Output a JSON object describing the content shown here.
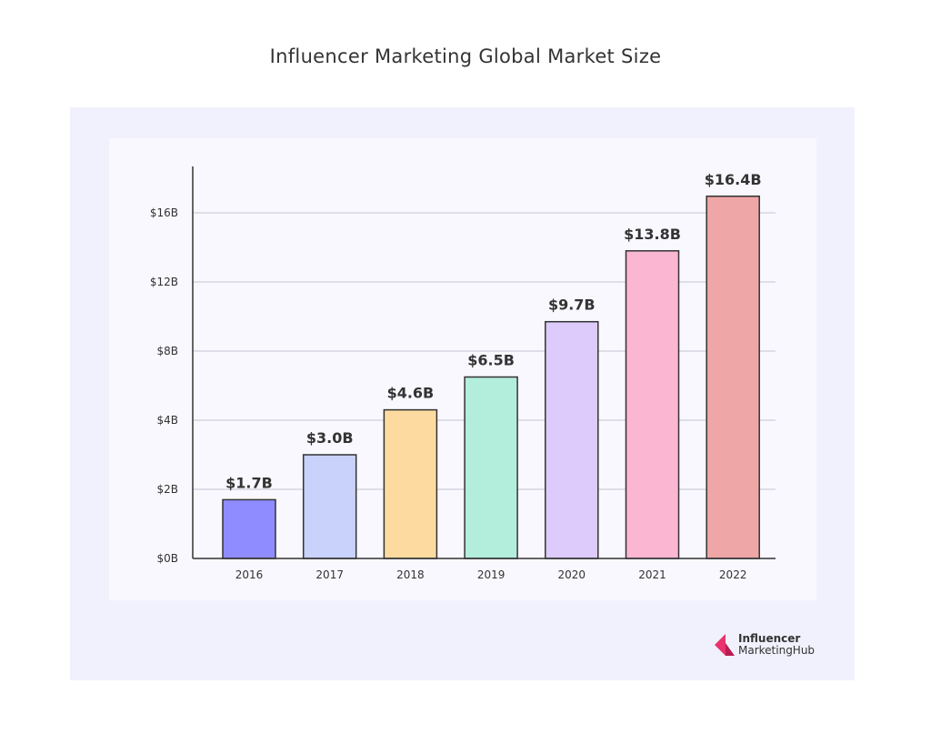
{
  "chart_data": {
    "type": "bar",
    "title": "Influencer Marketing Global Market Size",
    "categories": [
      "2016",
      "2017",
      "2018",
      "2019",
      "2020",
      "2021",
      "2022"
    ],
    "values": [
      1.7,
      3.0,
      4.6,
      6.5,
      9.7,
      13.8,
      16.4
    ],
    "data_labels": [
      "$1.7B",
      "$3.0B",
      "$4.6B",
      "$6.5B",
      "$9.7B",
      "$13.8B",
      "$16.4B"
    ],
    "colors": [
      "#8f8cff",
      "#c8d2fb",
      "#fddba0",
      "#b3eedd",
      "#dccbfb",
      "#fbb6d1",
      "#eea6a6"
    ],
    "yticks": [
      0,
      2,
      4,
      8,
      12,
      16
    ],
    "ytick_labels": [
      "$0B",
      "$2B",
      "$4B",
      "$8B",
      "$12B",
      "$16B"
    ],
    "xlabel": "",
    "ylabel": "",
    "grid": true
  },
  "logo": {
    "line1": "Influencer",
    "line2": "MarketingHub",
    "color": "#e8336d"
  }
}
